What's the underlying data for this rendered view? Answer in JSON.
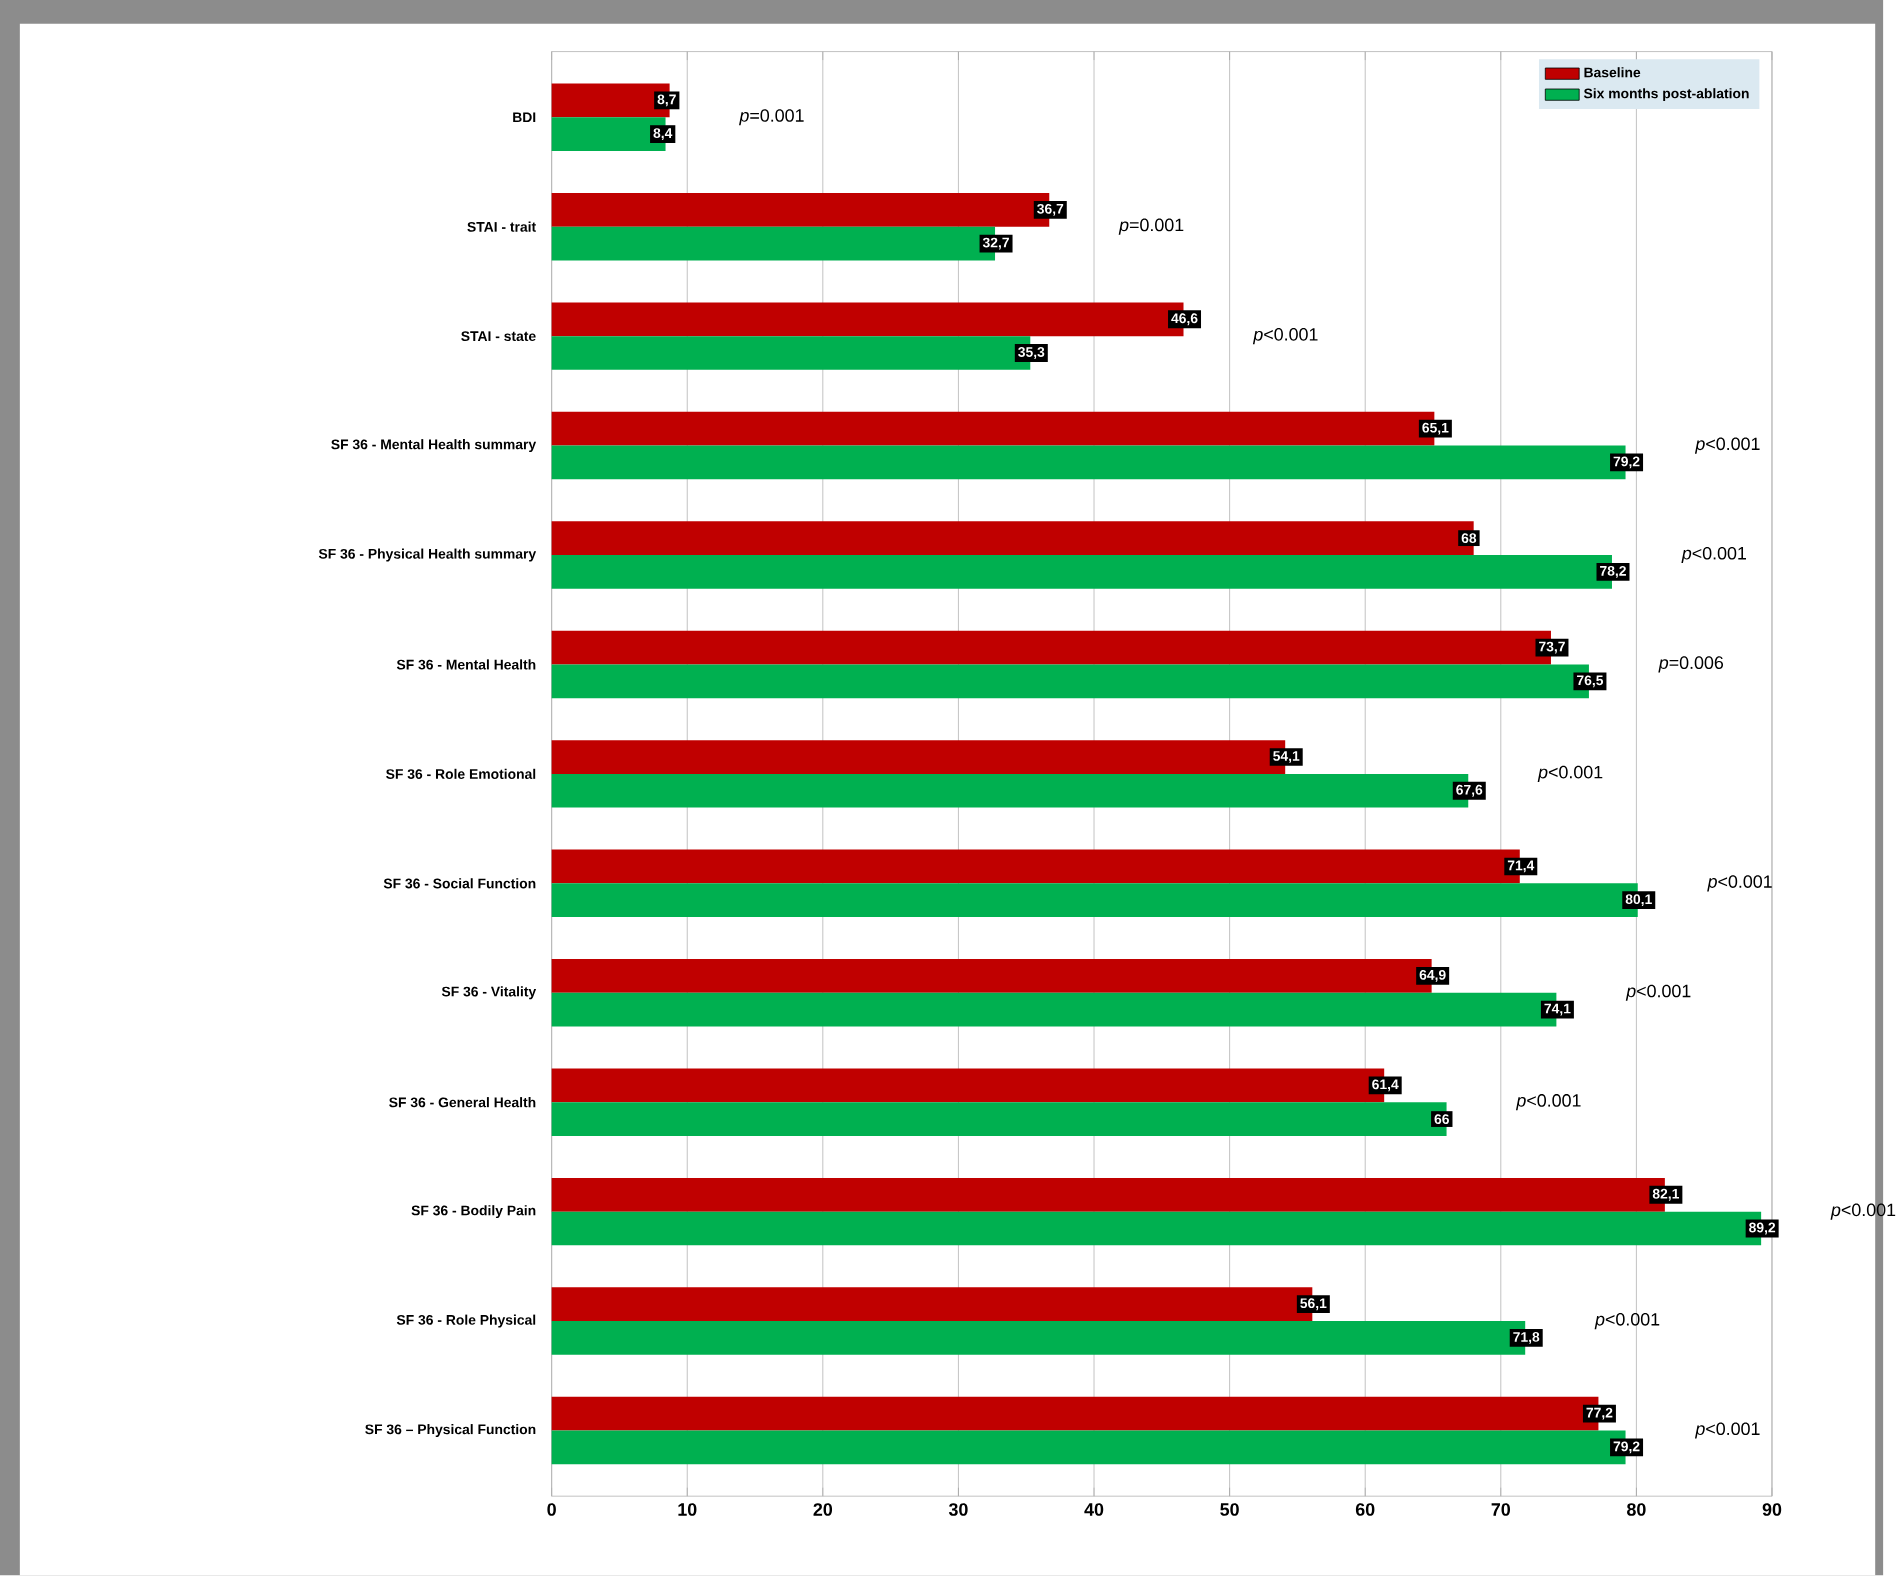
{
  "chart_data": {
    "type": "bar",
    "orientation": "horizontal",
    "categories": [
      "BDI",
      "STAI - trait",
      "STAI - state",
      "SF 36 - Mental Health summary",
      "SF 36 - Physical Health summary",
      "SF 36 - Mental Health",
      "SF 36 - Role Emotional",
      "SF 36 - Social Function",
      "SF 36 - Vitality",
      "SF 36 - General Health",
      "SF 36 - Bodily Pain",
      "SF 36 - Role Physical",
      "SF  36 – Physical Function"
    ],
    "series": [
      {
        "name": "Baseline",
        "color": "#c00000",
        "values": [
          8.7,
          36.7,
          46.6,
          65.1,
          68,
          73.7,
          54.1,
          71.4,
          64.9,
          61.4,
          82.1,
          56.1,
          77.2
        ],
        "value_labels": [
          "8,7",
          "36,7",
          "46,6",
          "65,1",
          "68",
          "73,7",
          "54,1",
          "71,4",
          "64,9",
          "61,4",
          "82,1",
          "56,1",
          "77,2"
        ]
      },
      {
        "name": "Six months post-ablation",
        "color": "#00b050",
        "values": [
          8.4,
          32.7,
          35.3,
          79.2,
          78.2,
          76.5,
          67.6,
          80.1,
          74.1,
          66,
          89.2,
          71.8,
          79.2
        ],
        "value_labels": [
          "8,4",
          "32,7",
          "35,3",
          "79,2",
          "78,2",
          "76,5",
          "67,6",
          "80,1",
          "74,1",
          "66",
          "89,2",
          "71,8",
          "79,2"
        ]
      }
    ],
    "xlim": [
      0,
      90
    ],
    "xticks": [
      0,
      10,
      20,
      30,
      40,
      50,
      60,
      70,
      80,
      90
    ],
    "grid": "x",
    "legend": "top right",
    "annotations": [
      "*p*=0.001",
      "*p*=0.001",
      "*p*<0.001",
      "*p*<0.001",
      "*p*<0.001",
      "*p*=0.006",
      "*p*<0.001",
      "*p*<0.001",
      "*p*<0.001",
      "*p*<0.001",
      "*p*<0.001",
      "*p*<0.001",
      "*p*<0.001"
    ]
  }
}
